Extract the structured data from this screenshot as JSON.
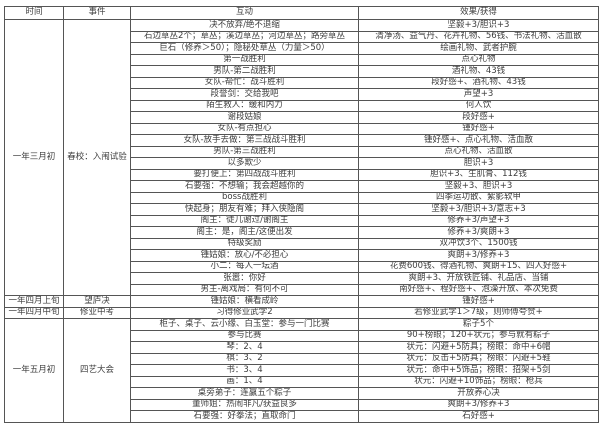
{
  "colors": {
    "border": "#555555",
    "text": "#3d3d3d",
    "background": "#ffffff"
  },
  "header": {
    "time": "时间",
    "event": "事件",
    "interaction": "互动",
    "effect": "效果/获得"
  },
  "groups": [
    {
      "time": "一年三月初",
      "event": "春校：入闱试验",
      "rows": [
        {
          "interaction": "决不放弃/绝不退缩",
          "effect": "坚毅+3/胆识+3"
        },
        {
          "interaction": "石边草丛2个；草丛；溪边草丛；河边草丛；路旁草丛",
          "effect": "清净汤、益气丹、花卉礼物、56钱、书法礼物、活血散"
        },
        {
          "interaction": "巨石（修养＞50）；隐秘处草丛（力量＞50）",
          "effect": "绘画礼物、武者护腕"
        },
        {
          "interaction": "第一战胜利",
          "effect": "点心礼物"
        },
        {
          "interaction": "男队-第二战胜利",
          "effect": "酒礼物、43钱"
        },
        {
          "interaction": "女队-帮忙：战斗胜利",
          "effect": "段好感+、酒礼物、43钱"
        },
        {
          "interaction": "段誉剑：交给我吧",
          "effect": "声望+3"
        },
        {
          "interaction": "陌生救人：缓和内力",
          "effect": "何人饮"
        },
        {
          "interaction": "谢段姑娘",
          "effect": "段好感+"
        },
        {
          "interaction": "女队-有点担心",
          "effect": "锺好感+"
        },
        {
          "interaction": "女队-放手去做：第三战战斗胜利",
          "effect": "锺好感+、点心礼物、活血散"
        },
        {
          "interaction": "男队-第三战胜利",
          "effect": "点心礼物、活血散"
        },
        {
          "interaction": "以多欺少",
          "effect": "胆识+3"
        },
        {
          "interaction": "要打便上：第四战战斗胜利",
          "effect": "胆识+3、生肌膏、112钱"
        },
        {
          "interaction": "石要强：不想输；我会超越你的",
          "effect": "坚毅+3、胆识+3"
        },
        {
          "interaction": "boss战胜利",
          "effect": "四季运功散、紫影软甲"
        },
        {
          "interaction": "快起身；朋友有难；拜入侠隐阁",
          "effect": "坚毅+3/胆识+3/意志+3"
        },
        {
          "interaction": "阁主：徒儿谢过/谢阁主",
          "effect": "修养+3/声望+3"
        },
        {
          "interaction": "阁主：是，阁主/这便出发",
          "effect": "修养+3/爽朗+3"
        },
        {
          "interaction": "特级奖励",
          "effect": "双冲饮3个、1500钱"
        },
        {
          "interaction": "锺姑娘：放心/不必担心",
          "effect": "爽朗+3/修养+3"
        },
        {
          "interaction": "小二：每人一坛酒",
          "effect": "花费600钱、得酒礼物、爽朗+15、四人好感+"
        },
        {
          "interaction": "张嚣：你好",
          "effect": "爽朗+3、开放铁匠铺、礼品店、当铺"
        },
        {
          "interaction": "男主-离戏局：有何不可",
          "effect": "南好感+、程好感+、泡澡开放、本次免费"
        }
      ]
    },
    {
      "time": "一年四月上旬",
      "event": "望庐决",
      "rows": [
        {
          "interaction": "锺姑娘：横看成岭",
          "effect": "锺好感+"
        }
      ]
    },
    {
      "time": "一年四月中旬",
      "event": "修业中考",
      "rows": [
        {
          "interaction": "习得修业武学2",
          "effect": "若修业武学1＞7级，则师傅夸赞+"
        }
      ]
    },
    {
      "time": "一年五月初",
      "event": "四艺大会",
      "rows": [
        {
          "interaction": "柜子、桌子、云小缘、白玉堂：参与一门比赛",
          "effect": "粽子5个"
        },
        {
          "interaction": "参与比赛",
          "effect": "90+榜眼；120+状元；参与就有粽子"
        },
        {
          "interaction": "琴：2、4",
          "effect": "状元：闪避+5防具；榜眼：命中+6帽"
        },
        {
          "interaction": "棋：3、2",
          "effect": "状元：反击+5防具；榜眼：闪避+5鞋"
        },
        {
          "interaction": "书：3、4",
          "effect": "状元：命中+5饰品；榜眼：招架+5剑"
        },
        {
          "interaction": "画：1、4",
          "effect": "状元：闪避+10饰品；榜眼：枪兵"
        },
        {
          "interaction": "桌旁弟子：连赢五个粽子",
          "effect": "开放养心决"
        },
        {
          "interaction": "董师姐：热闹非凡/获益良多",
          "effect": "爽朗+3/修养+3"
        },
        {
          "interaction": "石要强：好拳法；直取命门",
          "effect": "石好感+"
        }
      ]
    }
  ]
}
